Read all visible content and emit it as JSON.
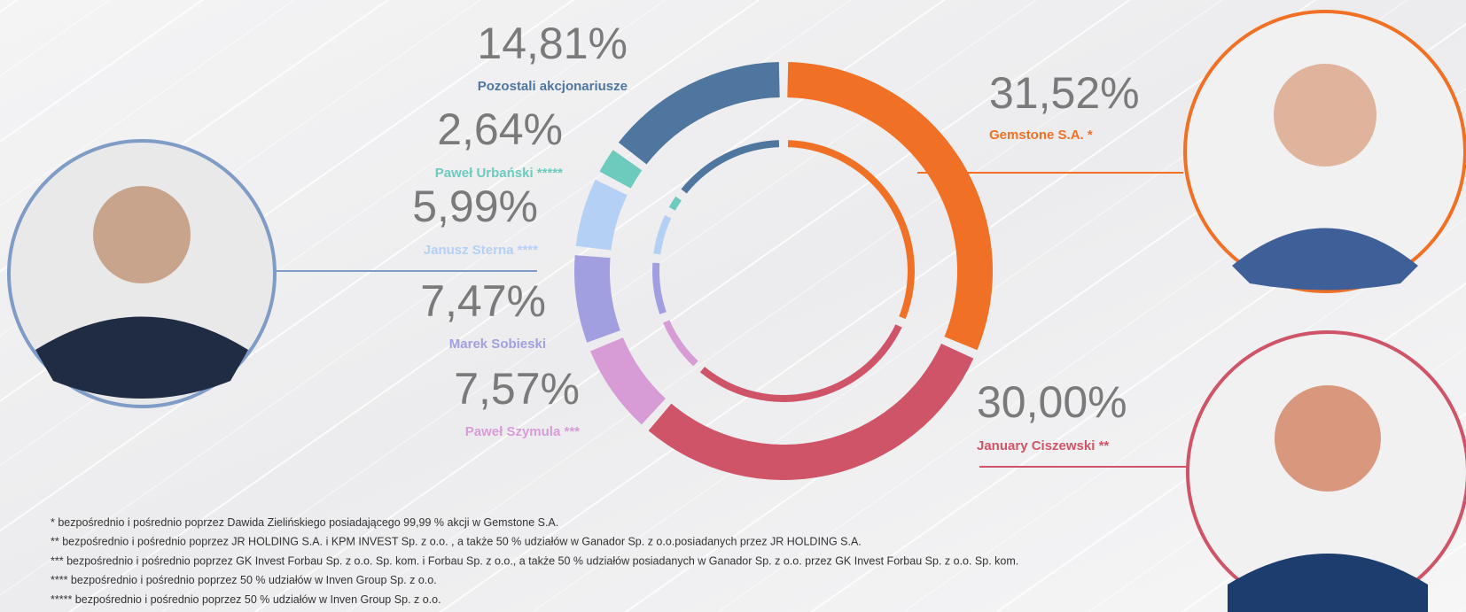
{
  "chart_data": {
    "type": "pie",
    "categories": [
      "Gemstone S.A. *",
      "January Ciszewski **",
      "Paweł Szymula ***",
      "Marek Sobieski",
      "Janusz Sterna ****",
      "Paweł Urbański *****",
      "Pozostali akcjonariusze"
    ],
    "values": [
      31.52,
      30.0,
      7.57,
      7.47,
      5.99,
      2.64,
      14.81
    ],
    "value_labels": [
      "31,52%",
      "30,00%",
      "7,57%",
      "7,47%",
      "5,99%",
      "2,64%",
      "14,81%"
    ],
    "colors": [
      "#f07125",
      "#d05468",
      "#d79cd6",
      "#a29fe0",
      "#b5d0f5",
      "#6dcbbd",
      "#4f769f"
    ],
    "annotations": [
      "* bezpośrednio i pośrednio poprzez Dawida Zielińskiego posiadającego 99,99 % akcji w Gemstone S.A.",
      "** bezpośrednio i pośrednio poprzez JR HOLDING S.A. i KPM INVEST Sp. z o.o. , a także 50 % udziałów w Ganador Sp. z o.o.posiadanych przez JR HOLDING S.A.",
      "*** bezpośrednio i pośrednio poprzez GK Invest Forbau Sp. z o.o. Sp. kom. i Forbau Sp. z o.o., a także 50 % udziałów posiadanych w Ganador Sp. z o.o. przez GK Invest Forbau Sp. z o.o. Sp. kom.",
      "**** bezpośrednio i pośrednio poprzez 50 % udziałów w Inven Group Sp. z o.o.",
      "***** bezpośrednio i pośrednio poprzez 50 % udziałów w Inven Group Sp. z o.o."
    ]
  }
}
